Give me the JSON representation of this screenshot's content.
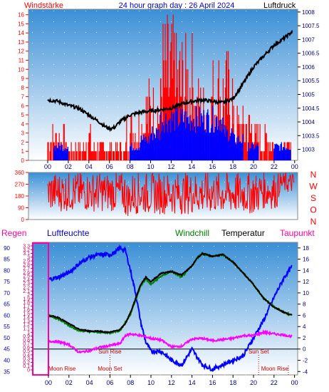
{
  "header": {
    "left": "Windstärke",
    "center": "24 hour graph day : 26 April 2024",
    "right": "Luftdruck"
  },
  "colors": {
    "panel_top": "#3a8fd6",
    "panel_bottom": "#ffffff",
    "wind": "#ff0000",
    "wind_avg": "#0000ff",
    "pressure": "#000000",
    "direction": "#ff0000",
    "humidity": "#0000ff",
    "temperature": "#000000",
    "windchill": "#008000",
    "dewpoint": "#ff00ff",
    "rain": "#ff00a0",
    "axis_left": "#ff0000",
    "axis_right": "#000080",
    "hum_axis": "#0000c0",
    "rain_axis": "#c00060",
    "event": "#cc0000"
  },
  "x_ticks": [
    "00",
    "02",
    "04",
    "06",
    "08",
    "10",
    "12",
    "14",
    "16",
    "18",
    "20",
    "22",
    "00"
  ],
  "chart_data": [
    {
      "type": "line",
      "title": "24 hour graph day : 26 April 2024",
      "y_left_label": "Windstärke",
      "y_right_label": "Luftdruck",
      "y_left_ticks": [
        "0",
        "1",
        "2",
        "3",
        "4",
        "5",
        "6",
        "7",
        "8",
        "9",
        "10",
        "11",
        "12",
        "13",
        "14",
        "15",
        "16"
      ],
      "y_right_ticks": [
        "1003",
        "1003.5",
        "1004",
        "1004.5",
        "1005",
        "1005.5",
        "1006",
        "1006.5",
        "1007",
        "1007.5",
        "1008"
      ],
      "ylim_left": [
        0,
        16.6
      ],
      "ylim_right": [
        1002.6,
        1008.1
      ],
      "pressure": {
        "name": "Luftdruck",
        "x": [
          0,
          1,
          2,
          3,
          4,
          5,
          5.5,
          6,
          6.5,
          7,
          8,
          9,
          10,
          11,
          12,
          13,
          14,
          15,
          16,
          17,
          18,
          19,
          20,
          21,
          22,
          23,
          23.8
        ],
        "y": [
          1004.8,
          1004.75,
          1004.6,
          1004.5,
          1004.25,
          1004.0,
          1003.85,
          1003.75,
          1003.8,
          1004.0,
          1004.25,
          1004.35,
          1004.4,
          1004.45,
          1004.5,
          1004.65,
          1004.75,
          1004.8,
          1004.75,
          1004.7,
          1004.85,
          1005.4,
          1006.0,
          1006.4,
          1006.8,
          1007.05,
          1007.3
        ]
      },
      "wind_segments": [
        {
          "from": 0.0,
          "to": 1.8,
          "min": 0,
          "max": 4
        },
        {
          "from": 1.8,
          "to": 3.6,
          "min": 0,
          "max": 2
        },
        {
          "from": 3.6,
          "to": 4.3,
          "min": 0,
          "max": 4
        },
        {
          "from": 4.3,
          "to": 7.6,
          "min": 0,
          "max": 2
        },
        {
          "from": 7.6,
          "to": 9.5,
          "min": 0,
          "max": 6
        },
        {
          "from": 9.5,
          "to": 11.0,
          "min": 0,
          "max": 9
        },
        {
          "from": 11.0,
          "to": 12.5,
          "min": 0,
          "max": 16
        },
        {
          "from": 12.5,
          "to": 14.3,
          "min": 0,
          "max": 14
        },
        {
          "from": 14.3,
          "to": 16.0,
          "min": 0,
          "max": 9
        },
        {
          "from": 16.0,
          "to": 18.0,
          "min": 0,
          "max": 12
        },
        {
          "from": 18.0,
          "to": 20.0,
          "min": 0,
          "max": 6
        },
        {
          "from": 20.0,
          "to": 22.0,
          "min": 0,
          "max": 4
        },
        {
          "from": 22.0,
          "to": 23.7,
          "min": 0,
          "max": 2
        }
      ],
      "wind_avg_segments": [
        {
          "from": 0.6,
          "to": 2.0,
          "level": 2
        },
        {
          "from": 8.0,
          "to": 9.0,
          "level": 2
        },
        {
          "from": 9.0,
          "to": 10.0,
          "level": 3
        },
        {
          "from": 10.0,
          "to": 11.0,
          "level": 4
        },
        {
          "from": 11.0,
          "to": 17.0,
          "level": 6
        },
        {
          "from": 17.0,
          "to": 18.0,
          "level": 4
        },
        {
          "from": 18.0,
          "to": 19.0,
          "level": 3
        },
        {
          "from": 19.5,
          "to": 20.5,
          "level": 2
        },
        {
          "from": 22.0,
          "to": 23.6,
          "level": 2
        }
      ]
    },
    {
      "type": "scatter",
      "ylabel_letters": [
        "N",
        "W",
        "S",
        "O",
        "N"
      ],
      "y_ticks": [
        "0",
        "90",
        "180",
        "270",
        "360"
      ],
      "ylim": [
        0,
        360
      ],
      "segments": [
        {
          "from": 0.0,
          "to": 7.5,
          "min": 60,
          "max": 360
        },
        {
          "from": 7.5,
          "to": 8.2,
          "min": 20,
          "max": 300
        },
        {
          "from": 8.2,
          "to": 20.5,
          "min": 40,
          "max": 360
        },
        {
          "from": 20.5,
          "to": 22.5,
          "min": 80,
          "max": 360
        },
        {
          "from": 22.5,
          "to": 24.0,
          "min": 200,
          "max": 360
        }
      ]
    },
    {
      "type": "line",
      "headers": {
        "rain": "Regen",
        "humidity": "Luftfeuchte",
        "windchill": "Windchill",
        "temperature": "Temperatur",
        "dewpoint": "Taupunkt"
      },
      "rain_ticks": [
        "0",
        "0.1",
        "0.2",
        "0.3",
        "0.4",
        "0.5",
        "0.6",
        "0.7",
        "0.8",
        "0.9",
        "1",
        "1.1",
        "1.2",
        "1.3",
        "1.4",
        "1.5",
        "1.6",
        "1.7",
        "1.8",
        "1.9",
        "2",
        "2.1",
        "2.2",
        "2.3",
        "2.4",
        "2.5",
        "2.6",
        "2.7",
        "2.8",
        "2.9",
        "3",
        "3.1",
        "3.2",
        "3.3"
      ],
      "humidity_ticks": [
        "35",
        "40",
        "45",
        "50",
        "55",
        "60",
        "65",
        "70",
        "75",
        "80",
        "85",
        "90"
      ],
      "temp_ticks": [
        "-4",
        "-2",
        "0",
        "2",
        "4",
        "6",
        "8",
        "10",
        "12",
        "14",
        "16",
        "18"
      ],
      "temp_range": [
        -4.6,
        19.0
      ],
      "humidity_range": [
        33.5,
        92.5
      ],
      "rain": {
        "name": "Regen",
        "total": 0
      },
      "temperature": {
        "name": "Temperatur",
        "x": [
          0,
          1,
          2,
          3,
          4,
          5,
          5.5,
          6,
          6.5,
          7,
          7.5,
          8,
          8.5,
          9,
          9.5,
          10,
          11,
          12,
          13,
          14,
          14.5,
          15,
          16,
          17,
          18,
          19,
          20,
          21,
          22,
          23,
          23.8
        ],
        "y": [
          6.0,
          5.6,
          4.5,
          3.5,
          3.2,
          3.2,
          3.0,
          3.0,
          3.2,
          3.5,
          4.5,
          6.5,
          9.0,
          11.5,
          12.8,
          12.0,
          13.5,
          13.8,
          13.2,
          14.8,
          16.2,
          17.0,
          16.5,
          16.8,
          15.5,
          13.5,
          11.5,
          9.0,
          7.5,
          6.5,
          6.0
        ]
      },
      "windchill": {
        "name": "Windchill",
        "x": [
          0,
          1,
          2,
          3,
          4,
          5,
          6,
          7,
          8,
          9,
          9.5,
          10,
          11,
          12,
          13,
          14,
          14.5,
          15,
          16,
          17,
          18,
          19,
          20,
          21,
          22,
          23,
          23.8
        ],
        "y": [
          6.0,
          5.3,
          4.2,
          3.3,
          3.1,
          3.0,
          2.9,
          3.3,
          6.2,
          11.2,
          12.5,
          11.5,
          13.0,
          13.8,
          12.8,
          14.8,
          16.2,
          17.0,
          16.5,
          16.8,
          15.5,
          13.5,
          11.5,
          9.0,
          7.5,
          6.5,
          6.0
        ]
      },
      "dewpoint": {
        "name": "Taupunkt",
        "x": [
          0,
          1,
          2,
          3,
          4,
          5,
          6,
          7,
          7.5,
          8,
          9,
          10,
          11,
          12,
          13,
          14,
          15,
          16,
          17,
          18,
          19,
          20,
          21,
          22,
          23,
          23.8
        ],
        "y": [
          1.4,
          1.3,
          0.8,
          -0.6,
          -0.3,
          0.3,
          0.6,
          1.0,
          2.4,
          2.7,
          2.4,
          1.9,
          1.6,
          0.4,
          0.5,
          1.8,
          1.9,
          1.5,
          1.7,
          1.9,
          2.4,
          2.4,
          3.0,
          2.7,
          2.5,
          2.2
        ]
      },
      "humidity": {
        "name": "Luftfeuchte",
        "x": [
          0,
          1,
          2,
          3,
          4,
          5,
          6,
          6.5,
          7,
          7.5,
          8,
          8.5,
          9,
          9.5,
          10,
          11,
          12,
          13,
          14,
          15,
          16,
          17,
          18,
          19,
          20,
          21,
          22,
          23,
          23.8
        ],
        "y": [
          76,
          77,
          79,
          83,
          86,
          87,
          87,
          88,
          90,
          89,
          80,
          70,
          57,
          48,
          44,
          44,
          40,
          38,
          45,
          38,
          36,
          38,
          40,
          42,
          50,
          58,
          68,
          77,
          82
        ]
      },
      "events": [
        {
          "label": "Moon Rise",
          "hour": 0.0,
          "row": "bottom"
        },
        {
          "label": "Moon Set",
          "hour": 6.0,
          "row": "bottom"
        },
        {
          "label": "Moon Rise",
          "hour": 23.4,
          "row": "bottom"
        },
        {
          "label": "Sun Rise",
          "hour": 6.0,
          "row": "middle"
        },
        {
          "label": "Sun Set",
          "hour": 20.5,
          "row": "middle"
        }
      ]
    }
  ]
}
